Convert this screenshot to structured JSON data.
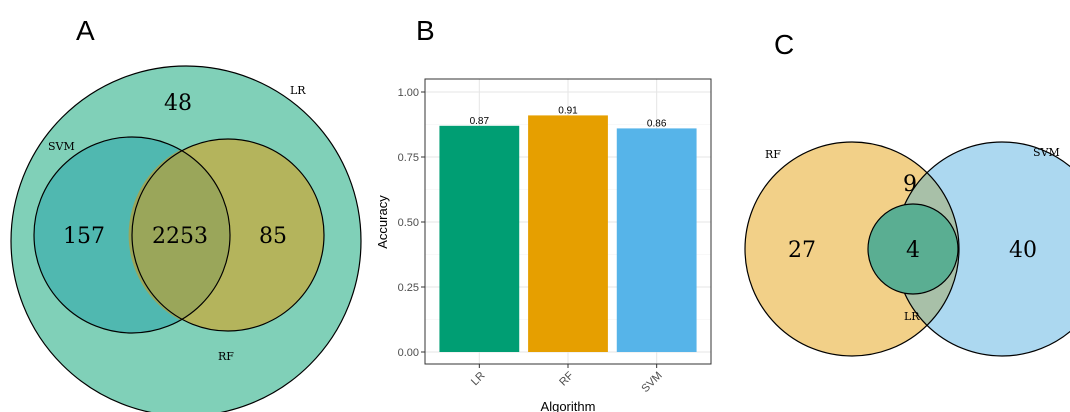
{
  "panels": {
    "a": {
      "letter": "A"
    },
    "b": {
      "letter": "B"
    },
    "c": {
      "letter": "C"
    }
  },
  "colors": {
    "lr": "#009e73",
    "rf": "#e69f00",
    "svm": "#56b4e9",
    "venn_a_outer": "#80d0b8",
    "venn_a_svm": "#50b8b0",
    "venn_a_rf": "#b4b45c",
    "venn_a_overlap": "#9aa65a",
    "venn_c_rf": "#f2d088",
    "venn_c_svm": "#acd8f0",
    "venn_c_lens": "#a8c0a8",
    "venn_c_lr": "#5aae92"
  },
  "chart_data": [
    {
      "type": "venn",
      "sets": [
        "LR",
        "SVM",
        "RF"
      ],
      "regions": [
        {
          "sets": [
            "LR"
          ],
          "value": 48
        },
        {
          "sets": [
            "LR",
            "SVM"
          ],
          "value": 157
        },
        {
          "sets": [
            "LR",
            "SVM",
            "RF"
          ],
          "value": 2253
        },
        {
          "sets": [
            "LR",
            "RF"
          ],
          "value": 85
        }
      ]
    },
    {
      "type": "bar",
      "categories": [
        "LR",
        "RF",
        "SVM"
      ],
      "values": [
        0.87,
        0.91,
        0.86
      ],
      "value_labels": [
        "0.87",
        "0.91",
        "0.86"
      ],
      "xlabel": "Algorithm",
      "ylabel": "Accuracy",
      "ylim": [
        0,
        1.0
      ],
      "yticks": [
        "0.00",
        "0.25",
        "0.50",
        "0.75",
        "1.00"
      ],
      "grid": true
    },
    {
      "type": "venn",
      "sets": [
        "RF",
        "SVM",
        "LR"
      ],
      "regions": [
        {
          "sets": [
            "RF"
          ],
          "value": 27
        },
        {
          "sets": [
            "RF",
            "SVM"
          ],
          "value": 9
        },
        {
          "sets": [
            "RF",
            "SVM",
            "LR"
          ],
          "value": 4
        },
        {
          "sets": [
            "SVM"
          ],
          "value": 40
        }
      ]
    }
  ]
}
